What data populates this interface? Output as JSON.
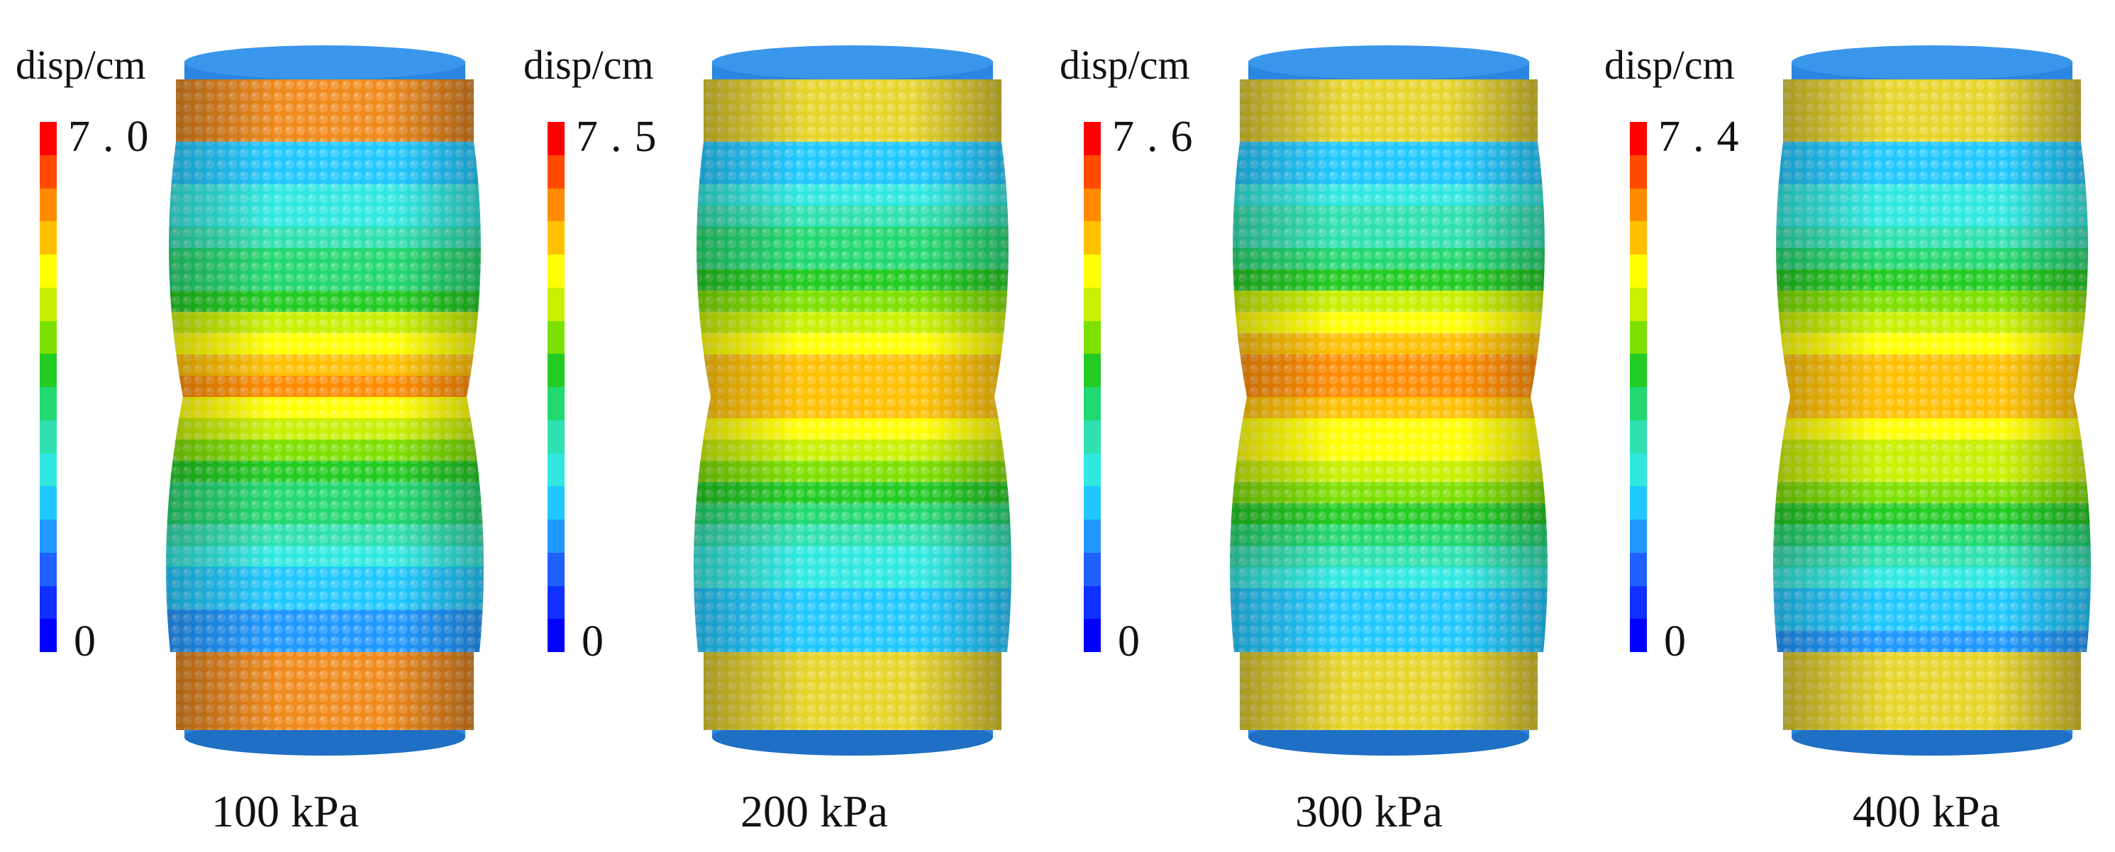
{
  "figure": {
    "panels": [
      {
        "pressure_label": "100 kPa",
        "legend_title": "disp/cm",
        "legend_max": "7.0",
        "legend_min": "0",
        "wall_color": "#f08a1c"
      },
      {
        "pressure_label": "200 kPa",
        "legend_title": "disp/cm",
        "legend_max": "7.5",
        "legend_min": "0",
        "wall_color": "#e8d42a"
      },
      {
        "pressure_label": "300 kPa",
        "legend_title": "disp/cm",
        "legend_max": "7.6",
        "legend_min": "0",
        "wall_color": "#e8d42a"
      },
      {
        "pressure_label": "400 kPa",
        "legend_title": "disp/cm",
        "legend_max": "7.4",
        "legend_min": "0",
        "wall_color": "#e8d42a"
      }
    ],
    "colorscale": [
      "#ff0000",
      "#ff4a00",
      "#ff8c00",
      "#ffc000",
      "#ffff00",
      "#c8f000",
      "#7ee000",
      "#22cc22",
      "#22d870",
      "#30e0b0",
      "#30e8e0",
      "#20c8ff",
      "#2098ff",
      "#2060ff",
      "#1030ff",
      "#0000ff"
    ],
    "platen_color": "#2a86e0"
  }
}
